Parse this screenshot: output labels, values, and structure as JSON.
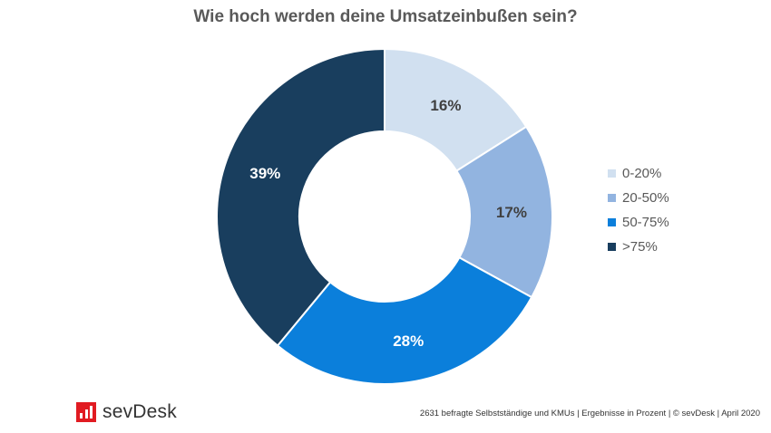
{
  "chart_data": {
    "type": "pie",
    "title": "Wie hoch werden deine Umsatzeinbußen sein?",
    "categories": [
      "0-20%",
      "20-50%",
      "50-75%",
      ">75%"
    ],
    "values": [
      16,
      17,
      28,
      39
    ],
    "labels": [
      "16%",
      "17%",
      "28%",
      "39%"
    ],
    "colors": [
      "#d1e0f0",
      "#92b4e0",
      "#0b7fdb",
      "#193e5e"
    ],
    "label_colors": [
      "#404040",
      "#404040",
      "#ffffff",
      "#ffffff"
    ],
    "donut": true,
    "legend_position": "right"
  },
  "brand": {
    "name": "sevDesk",
    "color": "#e11b22"
  },
  "footnote": "2631 befragte Selbstständige und KMUs | Ergebnisse in Prozent | © sevDesk | April 2020"
}
